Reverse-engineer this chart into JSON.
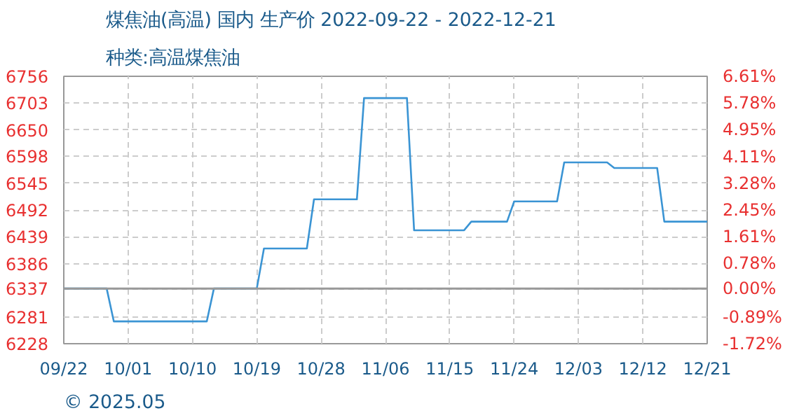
{
  "chart_data": {
    "type": "line",
    "title": "煤焦油(高温) 国内 生产价 2022-09-22 - 2022-12-21",
    "subtitle": "种类:高温煤焦油",
    "x": [
      "2022-09-22",
      "2022-09-28",
      "2022-09-29",
      "2022-10-12",
      "2022-10-13",
      "2022-10-19",
      "2022-10-20",
      "2022-10-26",
      "2022-10-27",
      "2022-11-02",
      "2022-11-03",
      "2022-11-09",
      "2022-11-10",
      "2022-11-17",
      "2022-11-18",
      "2022-11-23",
      "2022-11-24",
      "2022-11-30",
      "2022-12-01",
      "2022-12-07",
      "2022-12-08",
      "2022-12-14",
      "2022-12-15",
      "2022-12-21"
    ],
    "series": [
      {
        "color": "#3a94d4",
        "values": [
          6337,
          6337,
          6272,
          6272,
          6337,
          6337,
          6416,
          6416,
          6513,
          6513,
          6713,
          6713,
          6452,
          6452,
          6469,
          6469,
          6509,
          6509,
          6586,
          6586,
          6575,
          6575,
          6469,
          6469
        ]
      }
    ],
    "xlim": [
      "2022-09-22",
      "2022-12-21"
    ],
    "xticks": [
      {
        "value": "2022-09-22",
        "label": "09/22"
      },
      {
        "value": "2022-10-01",
        "label": "10/01"
      },
      {
        "value": "2022-10-10",
        "label": "10/10"
      },
      {
        "value": "2022-10-19",
        "label": "10/19"
      },
      {
        "value": "2022-10-28",
        "label": "10/28"
      },
      {
        "value": "2022-11-06",
        "label": "11/06"
      },
      {
        "value": "2022-11-15",
        "label": "11/15"
      },
      {
        "value": "2022-11-24",
        "label": "11/24"
      },
      {
        "value": "2022-12-03",
        "label": "12/03"
      },
      {
        "value": "2022-12-12",
        "label": "12/12"
      },
      {
        "value": "2022-12-21",
        "label": "12/21"
      }
    ],
    "ylim": [
      6228,
      6756
    ],
    "yticks": [
      6228,
      6281,
      6337,
      6386,
      6439,
      6492,
      6545,
      6598,
      6650,
      6703,
      6756
    ],
    "y2lim": [
      -1.72,
      6.61
    ],
    "y2ticks": [
      {
        "value": -1.72,
        "label": "-1.72%"
      },
      {
        "value": -0.89,
        "label": "-0.89%"
      },
      {
        "value": 0.0,
        "label": "0.00%"
      },
      {
        "value": 0.78,
        "label": "0.78%"
      },
      {
        "value": 1.61,
        "label": "1.61%"
      },
      {
        "value": 2.45,
        "label": "2.45%"
      },
      {
        "value": 3.28,
        "label": "3.28%"
      },
      {
        "value": 4.11,
        "label": "4.11%"
      },
      {
        "value": 4.95,
        "label": "4.95%"
      },
      {
        "value": 5.78,
        "label": "5.78%"
      },
      {
        "value": 6.61,
        "label": "6.61%"
      }
    ],
    "ref_lines": [
      {
        "axis": "y",
        "value": 6337,
        "color": "#999999"
      }
    ],
    "grid": true,
    "line_style": "solid",
    "annotations": [
      "© 2025.05"
    ]
  }
}
